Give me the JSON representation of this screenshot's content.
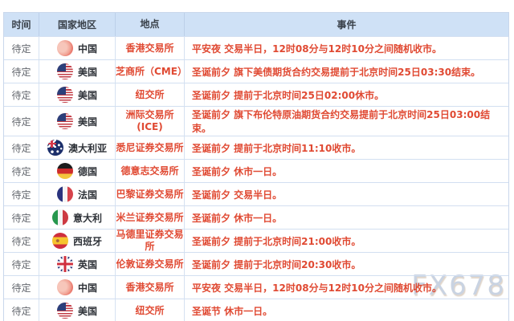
{
  "page": {
    "watermark": "FX678"
  },
  "colors": {
    "accent_red": "#e04a33",
    "header_bg": "#cfe1f6",
    "table_border": "#c9d7ec",
    "time_text": "#63676e",
    "country_text": "#2e3238",
    "watermark_text": "#c9d3e2"
  },
  "table": {
    "headers": [
      "时间",
      "国家地区",
      "地点",
      "事件"
    ],
    "rows": [
      {
        "time": "待定",
        "country": "中国",
        "flag": "cn",
        "flag_name": "china-flag-icon",
        "location_lines": [
          "香港交易所"
        ],
        "event": "平安夜 交易半日，12时08分与12时10分之间随机收市。",
        "tall": false
      },
      {
        "time": "待定",
        "country": "美国",
        "flag": "us",
        "flag_name": "usa-flag-icon",
        "location_lines": [
          "芝商所（CME）"
        ],
        "event": "圣诞前夕 旗下美债期货合约交易提前于北京时间25日03:30结束。",
        "tall": false
      },
      {
        "time": "待定",
        "country": "美国",
        "flag": "us",
        "flag_name": "usa-flag-icon",
        "location_lines": [
          "纽交所"
        ],
        "event": "圣诞前夕 提前于北京时间25日02:00休市。",
        "tall": false
      },
      {
        "time": "待定",
        "country": "美国",
        "flag": "us",
        "flag_name": "usa-flag-icon",
        "location_lines": [
          "洲际交易所",
          "(ICE)"
        ],
        "event": "圣诞前夕 旗下布伦特原油期货合约交易提前于北京时间25日03:00结束。",
        "tall": true
      },
      {
        "time": "待定",
        "country": "澳大利亚",
        "flag": "au",
        "flag_name": "australia-flag-icon",
        "location_lines": [
          "悉尼证券交易所"
        ],
        "event": "圣诞前夕 提前于北京时间11:10收市。",
        "tall": false
      },
      {
        "time": "待定",
        "country": "德国",
        "flag": "de",
        "flag_name": "germany-flag-icon",
        "location_lines": [
          "德意志交易所"
        ],
        "event": "圣诞前夕 休市一日。",
        "tall": false
      },
      {
        "time": "待定",
        "country": "法国",
        "flag": "fr",
        "flag_name": "france-flag-icon",
        "location_lines": [
          "巴黎证券交易所"
        ],
        "event": "圣诞前夕 交易半日。",
        "tall": false
      },
      {
        "time": "待定",
        "country": "意大利",
        "flag": "it",
        "flag_name": "italy-flag-icon",
        "location_lines": [
          "米兰证券交易所"
        ],
        "event": "圣诞前夕 休市一日。",
        "tall": false
      },
      {
        "time": "待定",
        "country": "西班牙",
        "flag": "es",
        "flag_name": "spain-flag-icon",
        "location_lines": [
          "马德里证券交易所"
        ],
        "event": "圣诞前夕 提前于北京时间21:00收市。",
        "tall": false
      },
      {
        "time": "待定",
        "country": "英国",
        "flag": "gb",
        "flag_name": "uk-flag-icon",
        "location_lines": [
          "伦敦证券交易所"
        ],
        "event": "圣诞前夕 提前于北京时间20:30收市。",
        "tall": false
      },
      {
        "time": "待定",
        "country": "中国",
        "flag": "cn",
        "flag_name": "china-flag-icon",
        "location_lines": [
          "香港交易所"
        ],
        "event": "平安夜 交易半日，12时08分与12时10分之间随机收市。",
        "tall": false
      },
      {
        "time": "待定",
        "country": "美国",
        "flag": "us",
        "flag_name": "usa-flag-icon",
        "location_lines": [
          "纽交所"
        ],
        "event": "圣诞节 休市一日。",
        "tall": false
      }
    ]
  }
}
